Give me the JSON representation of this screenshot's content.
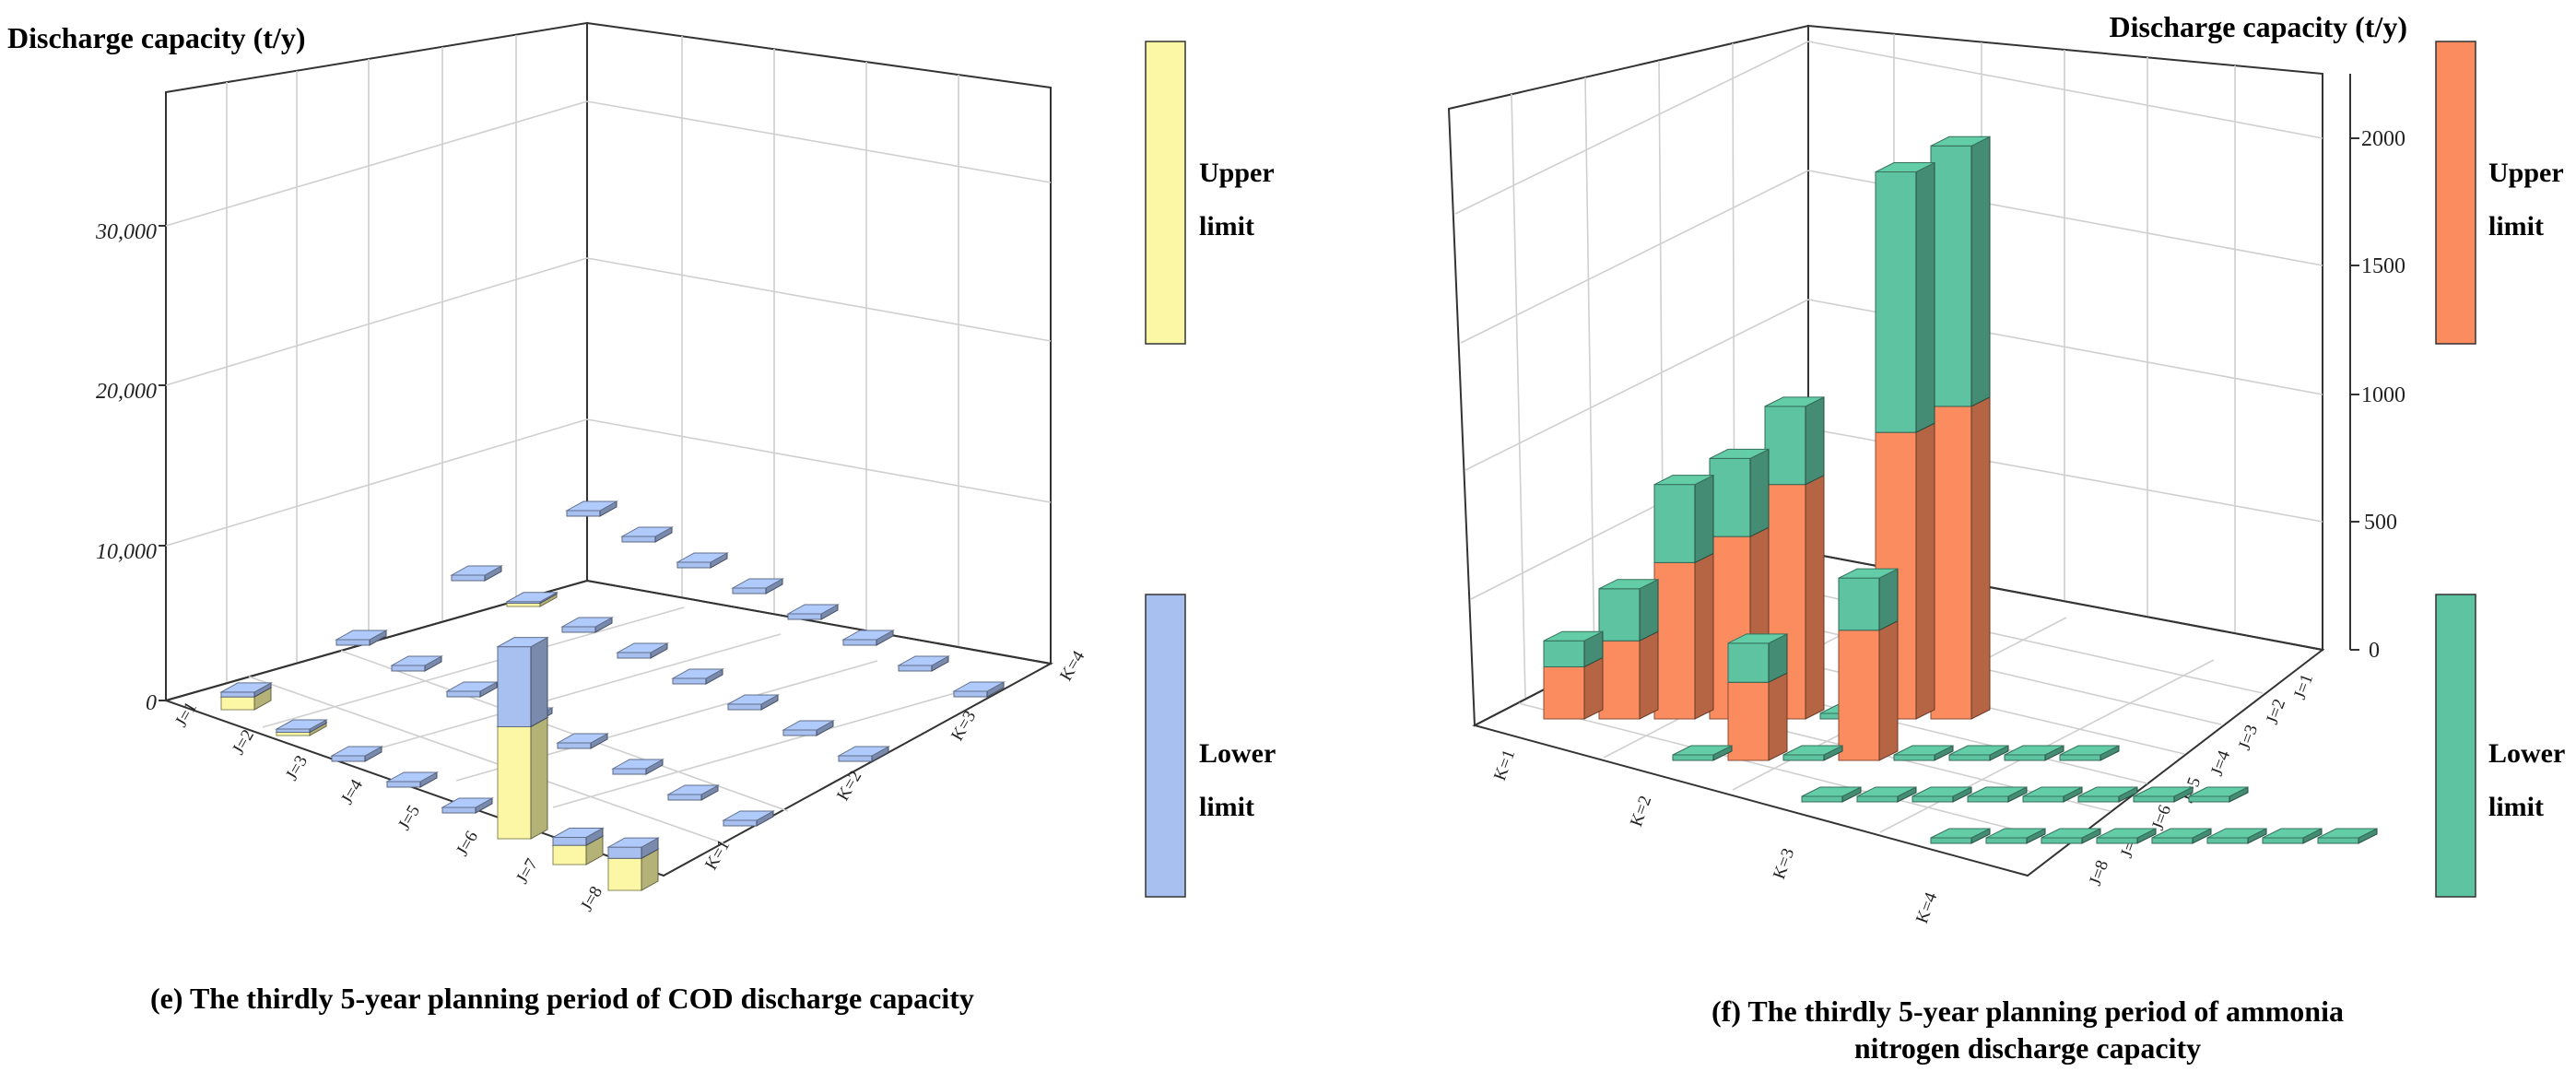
{
  "colors": {
    "cod_upper": "#fbf7a5",
    "cod_lower": "#a8c0f0",
    "nh_upper": "#fb8c5f",
    "nh_lower": "#5ec3a0"
  },
  "chart_data": [
    {
      "type": "bar",
      "title": "",
      "zlabel": "Discharge capacity (t/y)",
      "z_ticks": [
        "0",
        "10,000",
        "20,000",
        "30,000"
      ],
      "zlim": [
        0,
        36000
      ],
      "x_label_prefix": "J",
      "x_categories": [
        "J=1",
        "J=2",
        "J=3",
        "J=4",
        "J=5",
        "J=6",
        "J=7",
        "J=8"
      ],
      "y_categories": [
        "K=1",
        "K=2",
        "K=3",
        "K=4"
      ],
      "series": [
        {
          "name": "Upper limit",
          "values": [
            [
              800,
              200,
              0,
              0,
              0,
              7000,
              1200,
              2000
            ],
            [
              0,
              0,
              0,
              0,
              0,
              0,
              0,
              0
            ],
            [
              0,
              200,
              0,
              0,
              0,
              0,
              0,
              0
            ],
            [
              0,
              0,
              0,
              0,
              0,
              0,
              0,
              0
            ]
          ]
        },
        {
          "name": "Lower limit",
          "values": [
            [
              1100,
              400,
              0,
              0,
              0,
              12000,
              1700,
              2700
            ],
            [
              0,
              0,
              0,
              0,
              0,
              0,
              0,
              0
            ],
            [
              0,
              300,
              0,
              0,
              0,
              0,
              0,
              0
            ],
            [
              0,
              0,
              0,
              0,
              0,
              0,
              0,
              0
            ]
          ]
        }
      ],
      "caption": "(e) The thirdly 5-year planning period of COD discharge capacity",
      "legend": [
        {
          "label_line1": "Upper",
          "label_line2": "limit"
        },
        {
          "label_line1": "Lower",
          "label_line2": "limit"
        }
      ]
    },
    {
      "type": "bar",
      "title": "",
      "zlabel": "Discharge capacity (t/y)",
      "z_ticks": [
        "0",
        "500",
        "1000",
        "1500",
        "2000"
      ],
      "zlim": [
        0,
        2300
      ],
      "x_categories": [
        "K=1",
        "K=2",
        "K=3",
        "K=4"
      ],
      "y_categories": [
        "J=1",
        "J=2",
        "J=3",
        "J=4",
        "J=5",
        "J=6",
        "J=7",
        "J=8"
      ],
      "series": [
        {
          "name": "Upper limit",
          "values": [
            [
              1200,
              1100,
              0,
              900,
              700,
              600,
              300,
              200
            ],
            [
              0,
              0,
              0,
              0,
              500,
              0,
              300,
              0
            ],
            [
              0,
              0,
              0,
              0,
              0,
              0,
              0,
              0
            ],
            [
              0,
              0,
              0,
              0,
              0,
              0,
              0,
              0
            ]
          ]
        },
        {
          "name": "Lower limit",
          "values": [
            [
              2200,
              2100,
              0,
              1200,
              1000,
              900,
              500,
              300
            ],
            [
              0,
              0,
              0,
              0,
              700,
              0,
              450,
              0
            ],
            [
              0,
              0,
              0,
              0,
              0,
              0,
              0,
              0
            ],
            [
              0,
              0,
              0,
              0,
              0,
              0,
              0,
              0
            ]
          ]
        }
      ],
      "caption_line1": "(f) The thirdly 5-year planning period of  ammonia",
      "caption_line2": "nitrogen discharge capacity",
      "legend": [
        {
          "label_line1": "Upper",
          "label_line2": "limit"
        },
        {
          "label_line1": "Lower",
          "label_line2": "limit"
        }
      ]
    }
  ]
}
